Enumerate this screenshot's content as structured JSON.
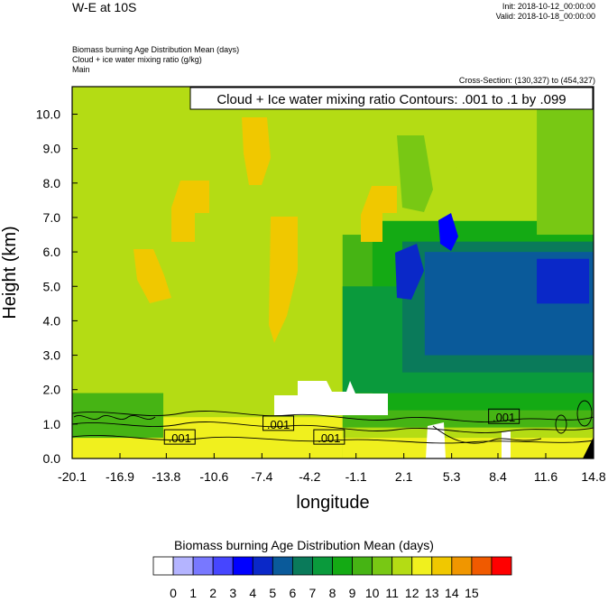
{
  "header": {
    "title": "W-E at 10S",
    "init": "Init: 2018-10-12_00:00:00",
    "valid": "Valid: 2018-10-18_00:00:00",
    "fields": [
      "Biomass burning Age Distribution Mean   (days)",
      "Cloud + ice water mixing ratio   (g/kg)",
      "Main"
    ],
    "cross_section": "Cross-Section: (130,327) to (454,327)"
  },
  "chart_data": {
    "type": "heatmap",
    "title": "",
    "xlabel": "longitude",
    "ylabel": "Height (km)",
    "xlim": [
      -20.1,
      14.8
    ],
    "ylim": [
      0.0,
      10.8
    ],
    "x_ticks": [
      "-20.1",
      "-16.9",
      "-13.8",
      "-10.6",
      "-7.4",
      "-4.2",
      "-1.1",
      "2.1",
      "5.3",
      "8.4",
      "11.6",
      "14.8"
    ],
    "y_ticks": [
      "0.0",
      "1.0",
      "2.0",
      "3.0",
      "4.0",
      "5.0",
      "6.0",
      "7.0",
      "8.0",
      "9.0",
      "10.0"
    ],
    "contour_annotation": "Cloud + Ice water mixing ratio Contours: .001 to .1 by .099",
    "contour_labels": [
      {
        "text": ".001",
        "lon": -12.9,
        "height": 0.6
      },
      {
        "text": ".001",
        "lon": -6.3,
        "height": 1.0
      },
      {
        "text": ".001",
        "lon": -2.9,
        "height": 0.6
      },
      {
        "text": ".001",
        "lon": 8.8,
        "height": 1.2
      }
    ],
    "colorbar": {
      "title": "Biomass burning Age Distribution Mean  (days)",
      "labels": [
        "0",
        "1",
        "2",
        "3",
        "4",
        "5",
        "6",
        "7",
        "8",
        "9",
        "10",
        "11",
        "12",
        "13",
        "14",
        "15"
      ],
      "colors": [
        "#ffffff",
        "#b4b4ff",
        "#7878ff",
        "#4646ff",
        "#0000ff",
        "#0a28c8",
        "#0a5a9a",
        "#0a7a5a",
        "#0a9a3c",
        "#14aa14",
        "#46b414",
        "#78c814",
        "#b4dc14",
        "#f0f01e",
        "#f0c800",
        "#f09600",
        "#f05a00",
        "#ff0000"
      ]
    },
    "regions": [
      {
        "days": 11.5,
        "lon": [
          -20.1,
          14.8
        ],
        "height": [
          0.0,
          10.8
        ]
      },
      {
        "days": 12.5,
        "lon": [
          -20.1,
          -2.0
        ],
        "height": [
          0.0,
          1.2
        ]
      },
      {
        "days": 12.5,
        "lon": [
          -2.0,
          14.8
        ],
        "height": [
          0.0,
          0.6
        ]
      },
      {
        "days": 9.5,
        "lon": [
          -20.1,
          -14.0
        ],
        "height": [
          0.6,
          1.9
        ]
      },
      {
        "days": 9.5,
        "lon": [
          -2.0,
          14.8
        ],
        "height": [
          0.9,
          6.5
        ]
      },
      {
        "days": 8.5,
        "lon": [
          0.0,
          14.8
        ],
        "height": [
          1.4,
          6.9
        ]
      },
      {
        "days": 7.5,
        "lon": [
          -2.0,
          14.8
        ],
        "height": [
          1.9,
          5.0
        ]
      },
      {
        "days": 6.5,
        "lon": [
          2.0,
          14.8
        ],
        "height": [
          2.5,
          6.3
        ]
      },
      {
        "days": 5.5,
        "lon": [
          3.5,
          14.8
        ],
        "height": [
          3.0,
          6.0
        ]
      },
      {
        "days": 4.5,
        "lon": [
          11.0,
          14.5
        ],
        "height": [
          4.5,
          5.8
        ]
      },
      {
        "days": 10.5,
        "lon": [
          11.0,
          14.8
        ],
        "height": [
          6.5,
          10.8
        ]
      }
    ]
  }
}
